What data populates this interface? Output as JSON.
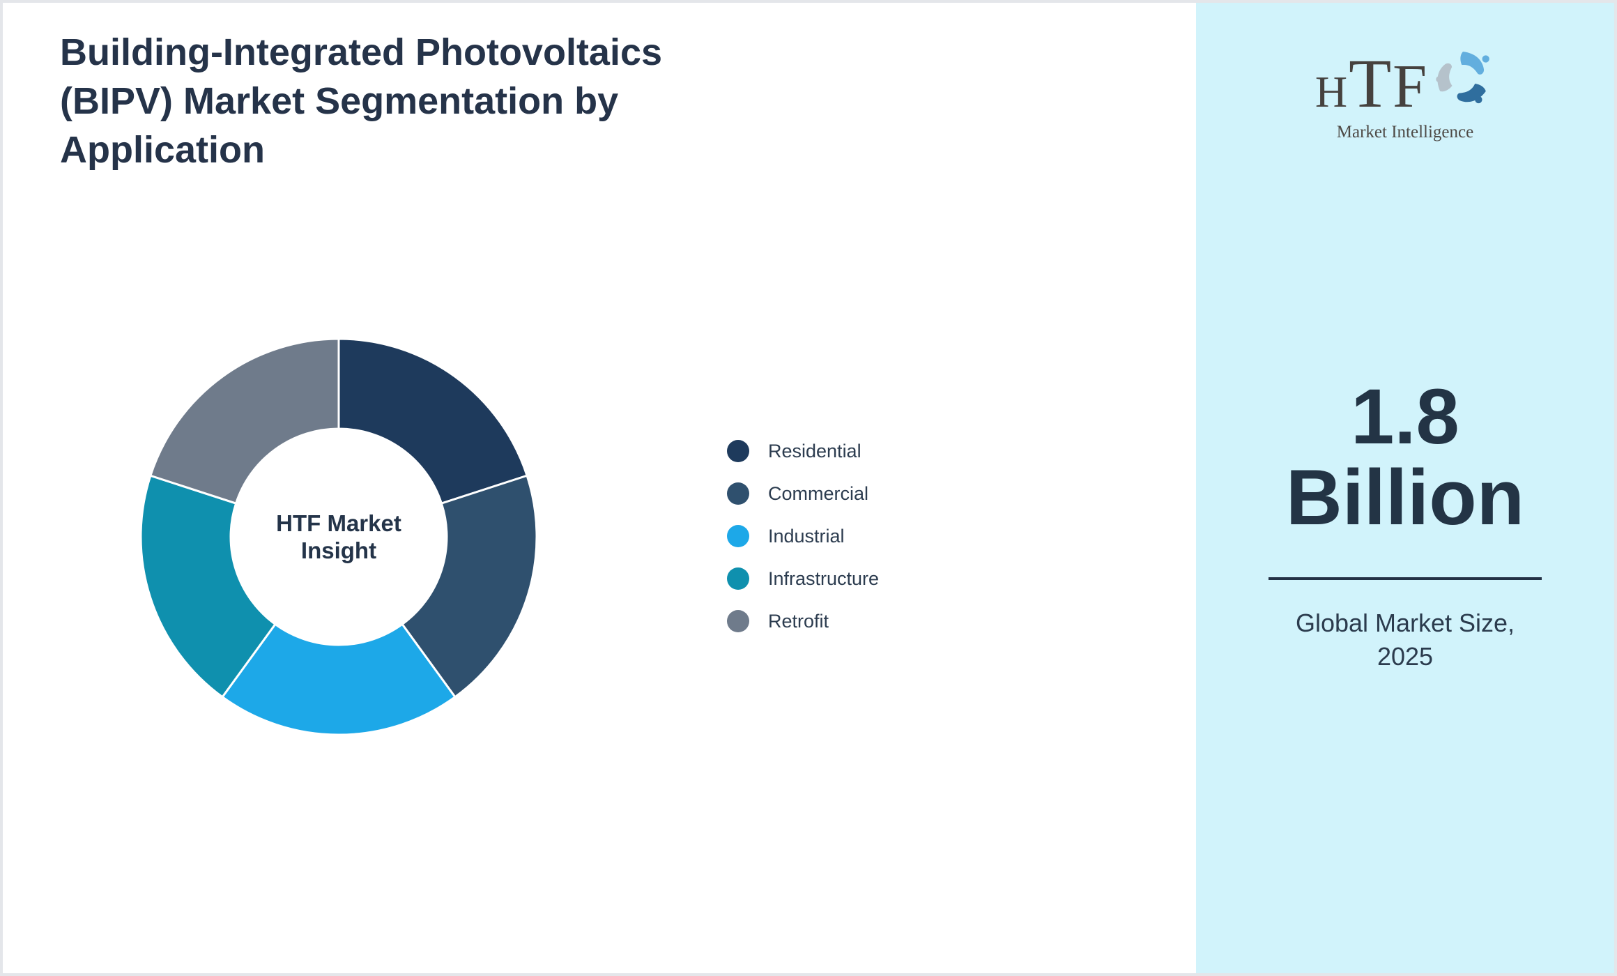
{
  "header": {
    "title": "Building-Integrated Photovoltaics (BIPV) Market Segmentation by Application"
  },
  "chart_data": {
    "type": "pie",
    "subtype": "donut",
    "title": "Building-Integrated Photovoltaics (BIPV) Market Segmentation by Application",
    "center_label": "HTF Market Insight",
    "categories": [
      "Residential",
      "Commercial",
      "Industrial",
      "Infrastructure",
      "Retrofit"
    ],
    "values": [
      20,
      20,
      20,
      20,
      20
    ],
    "values_unit": "% share (equal arcs, estimated from segment angles)",
    "colors": [
      "#1e3a5c",
      "#2f506e",
      "#1da8e8",
      "#0f90ae",
      "#6f7b8b"
    ],
    "segment_border_color": "#ffffff",
    "start_angle_deg": 0,
    "direction": "clockwise",
    "inner_radius_ratio": 0.545,
    "legend_position": "right",
    "grid": false
  },
  "sidebar": {
    "logo": {
      "wordmark": "HTF",
      "subtitle": "Market Intelligence",
      "swirl_colors": [
        "#62aede",
        "#b5c2cb",
        "#2f6e9e"
      ]
    },
    "market_size": {
      "value": "1.8",
      "unit": "Billion",
      "caption_line1": "Global Market Size,",
      "caption_line2": "2025"
    },
    "background_color": "#d1f3fb"
  },
  "page_colors": {
    "canvas_background": "#ffffff",
    "border": "#e4e6ea",
    "title_text": "#253349",
    "legend_text": "#2c3c4f",
    "big_number_text": "#233445",
    "divider": "#233145"
  }
}
